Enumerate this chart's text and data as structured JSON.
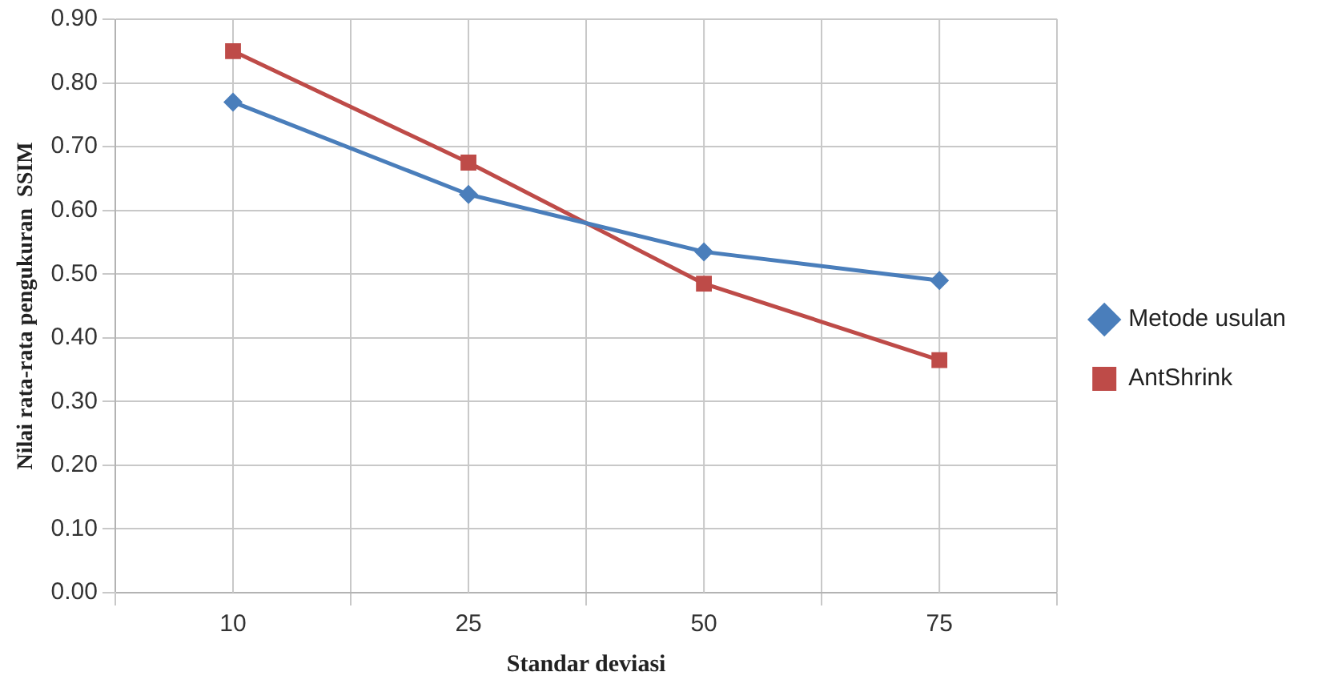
{
  "chart_data": {
    "type": "line",
    "xlabel": "Standar deviasi",
    "ylabel": "Nilai rata-rata pengukuran  SSIM",
    "categories": [
      "10",
      "25",
      "50",
      "75"
    ],
    "series": [
      {
        "name": "Metode usulan",
        "color": "#4a7ebb",
        "values": [
          0.77,
          0.625,
          0.535,
          0.49
        ],
        "marker": "diamond"
      },
      {
        "name": "AntShrink",
        "color": "#be4b48",
        "values": [
          0.85,
          0.675,
          0.485,
          0.365
        ],
        "marker": "square"
      }
    ],
    "ylim": [
      0,
      0.9
    ],
    "yticks": [
      {
        "value": 0,
        "label": "0.00"
      },
      {
        "value": 0.1,
        "label": "0.10"
      },
      {
        "value": 0.2,
        "label": "0.20"
      },
      {
        "value": 0.3,
        "label": "0.30"
      },
      {
        "value": 0.4,
        "label": "0.40"
      },
      {
        "value": 0.5,
        "label": "0.50"
      },
      {
        "value": 0.6,
        "label": "0.60"
      },
      {
        "value": 0.7,
        "label": "0.70"
      },
      {
        "value": 0.8,
        "label": "0.80"
      },
      {
        "value": 0.9,
        "label": "0.90"
      }
    ],
    "grid": true,
    "legend": "right"
  }
}
